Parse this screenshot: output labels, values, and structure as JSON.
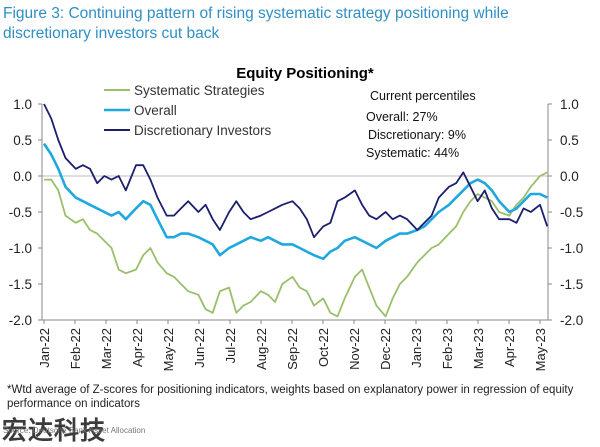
{
  "figure_title": "Figure 3: Continuing pattern of rising systematic strategy positioning while discretionary investors cut back",
  "footnote": "*Wtd average of Z-scores for positioning indicators, weights based on explanatory power in regression of equity performance on indicators",
  "source": "Source: Deutsche Bank Asset Allocation",
  "watermark": "宏达科技",
  "colors": {
    "title": "#2f8fc4",
    "systematic": "#9abf6a",
    "overall": "#1fa8e0",
    "discretionary": "#1b1f6e"
  },
  "chart_data": {
    "type": "line",
    "title": "Equity Positioning*",
    "ylim": [
      -2.0,
      1.0
    ],
    "yticks_left": [
      "1.0",
      "0.5",
      "0.0",
      "-0.5",
      "-1.0",
      "-1.5",
      "-2.0"
    ],
    "yticks_right": [
      "1.0",
      "0.5",
      "0.0",
      "-0.5",
      "-1.0",
      "-1.5",
      "-2.0"
    ],
    "x_ticklabels": [
      "Jan-22",
      "Feb-22",
      "Mar-22",
      "Apr-22",
      "May-22",
      "Jun-22",
      "Jul-22",
      "Aug-22",
      "Sep-22",
      "Oct-22",
      "Nov-22",
      "Dec-22",
      "Jan-23",
      "Feb-23",
      "Mar-23",
      "Apr-23",
      "May-23"
    ],
    "x": [
      "2022-01-01",
      "2022-01-08",
      "2022-01-15",
      "2022-01-22",
      "2022-02-01",
      "2022-02-08",
      "2022-02-15",
      "2022-02-22",
      "2022-03-01",
      "2022-03-08",
      "2022-03-15",
      "2022-03-22",
      "2022-04-01",
      "2022-04-08",
      "2022-04-15",
      "2022-04-22",
      "2022-05-01",
      "2022-05-08",
      "2022-05-15",
      "2022-05-22",
      "2022-06-01",
      "2022-06-08",
      "2022-06-15",
      "2022-06-22",
      "2022-07-01",
      "2022-07-08",
      "2022-07-15",
      "2022-07-22",
      "2022-08-01",
      "2022-08-08",
      "2022-08-15",
      "2022-08-22",
      "2022-09-01",
      "2022-09-08",
      "2022-09-15",
      "2022-09-22",
      "2022-10-01",
      "2022-10-08",
      "2022-10-15",
      "2022-10-22",
      "2022-11-01",
      "2022-11-08",
      "2022-11-15",
      "2022-11-22",
      "2022-12-01",
      "2022-12-08",
      "2022-12-15",
      "2022-12-22",
      "2023-01-01",
      "2023-01-08",
      "2023-01-15",
      "2023-01-22",
      "2023-02-01",
      "2023-02-08",
      "2023-02-15",
      "2023-02-22",
      "2023-03-01",
      "2023-03-08",
      "2023-03-15",
      "2023-03-22",
      "2023-04-01",
      "2023-04-08",
      "2023-04-15",
      "2023-04-22",
      "2023-05-01",
      "2023-05-08"
    ],
    "series": [
      {
        "name": "Systematic Strategies",
        "color": "#9abf6a",
        "values": [
          -0.05,
          -0.05,
          -0.2,
          -0.55,
          -0.65,
          -0.6,
          -0.75,
          -0.8,
          -0.9,
          -1.0,
          -1.3,
          -1.35,
          -1.3,
          -1.1,
          -1.0,
          -1.2,
          -1.35,
          -1.4,
          -1.5,
          -1.6,
          -1.65,
          -1.85,
          -1.9,
          -1.6,
          -1.55,
          -1.9,
          -1.8,
          -1.75,
          -1.6,
          -1.65,
          -1.75,
          -1.5,
          -1.4,
          -1.55,
          -1.6,
          -1.8,
          -1.7,
          -1.9,
          -1.95,
          -1.7,
          -1.4,
          -1.3,
          -1.55,
          -1.8,
          -1.95,
          -1.7,
          -1.5,
          -1.4,
          -1.2,
          -1.1,
          -1.0,
          -0.95,
          -0.8,
          -0.7,
          -0.5,
          -0.35,
          -0.25,
          -0.3,
          -0.35,
          -0.5,
          -0.55,
          -0.4,
          -0.3,
          -0.15,
          0.0,
          0.05
        ]
      },
      {
        "name": "Overall",
        "color": "#1fa8e0",
        "values": [
          0.45,
          0.3,
          0.1,
          -0.15,
          -0.3,
          -0.35,
          -0.4,
          -0.45,
          -0.5,
          -0.55,
          -0.5,
          -0.6,
          -0.45,
          -0.35,
          -0.4,
          -0.6,
          -0.85,
          -0.85,
          -0.8,
          -0.8,
          -0.85,
          -0.9,
          -0.95,
          -1.1,
          -1.0,
          -0.95,
          -0.9,
          -0.85,
          -0.9,
          -0.85,
          -0.9,
          -0.95,
          -0.95,
          -1.0,
          -1.05,
          -1.1,
          -1.15,
          -1.05,
          -1.0,
          -0.9,
          -0.85,
          -0.9,
          -0.95,
          -1.0,
          -0.9,
          -0.85,
          -0.8,
          -0.8,
          -0.75,
          -0.7,
          -0.6,
          -0.5,
          -0.4,
          -0.3,
          -0.2,
          -0.1,
          -0.05,
          -0.1,
          -0.2,
          -0.35,
          -0.5,
          -0.45,
          -0.35,
          -0.25,
          -0.25,
          -0.3
        ]
      },
      {
        "name": "Discretionary Investors",
        "color": "#1b1f6e",
        "values": [
          1.0,
          0.8,
          0.5,
          0.25,
          0.1,
          0.15,
          0.1,
          -0.1,
          0.0,
          -0.05,
          0.0,
          -0.2,
          0.15,
          0.15,
          -0.05,
          -0.3,
          -0.55,
          -0.55,
          -0.45,
          -0.35,
          -0.5,
          -0.4,
          -0.6,
          -0.75,
          -0.5,
          -0.35,
          -0.5,
          -0.6,
          -0.55,
          -0.5,
          -0.45,
          -0.4,
          -0.35,
          -0.45,
          -0.6,
          -0.85,
          -0.7,
          -0.65,
          -0.35,
          -0.3,
          -0.2,
          -0.4,
          -0.55,
          -0.6,
          -0.5,
          -0.6,
          -0.55,
          -0.6,
          -0.75,
          -0.65,
          -0.55,
          -0.3,
          -0.15,
          -0.1,
          0.05,
          -0.15,
          -0.35,
          -0.2,
          -0.45,
          -0.6,
          -0.6,
          -0.65,
          -0.45,
          -0.5,
          -0.4,
          -0.7
        ]
      }
    ],
    "legend_position": "top-left",
    "annotation": {
      "heading": "Current percentiles",
      "lines": [
        "Overall: 27%",
        "Discretionary: 9%",
        "Systematic: 44%"
      ]
    }
  }
}
